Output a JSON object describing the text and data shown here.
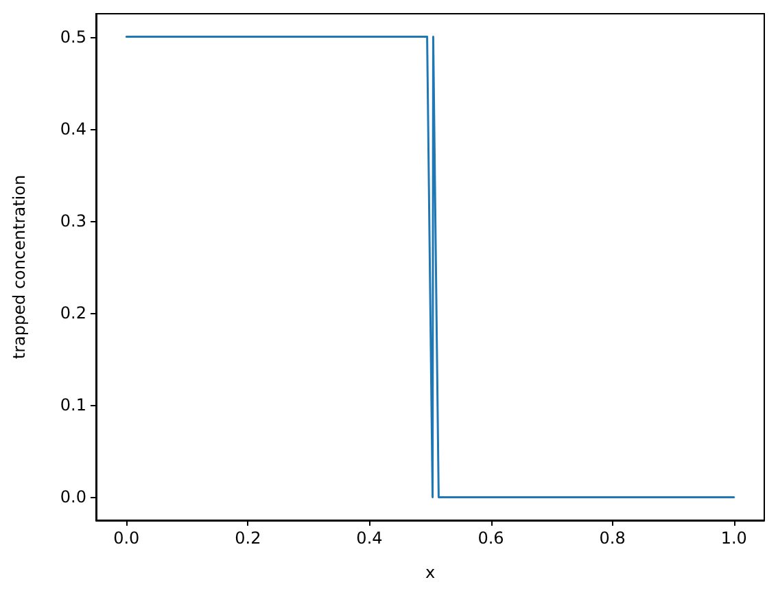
{
  "chart_data": {
    "type": "line",
    "xlabel": "x",
    "ylabel": "trapped concentration",
    "series": [
      {
        "color": "#1f77b4",
        "x": [
          0,
          0.495,
          0.504,
          0.505,
          0.514,
          1.0
        ],
        "values": [
          0.5,
          0.5,
          0,
          0.5,
          0,
          0
        ]
      }
    ],
    "xlim": [
      -0.05,
      1.05
    ],
    "xticks": [
      {
        "value": 0,
        "label": "0.0"
      },
      0.2,
      0.4,
      0.6,
      0.8,
      {
        "value": 1,
        "label": "1.0"
      }
    ],
    "ylim": [
      -0.025,
      0.525
    ],
    "yticks": [
      {
        "value": 0,
        "label": "0.0"
      },
      0.1,
      0.2,
      0.3,
      0.4,
      0.5
    ],
    "grid": false,
    "marker": "none",
    "line_style": "solid"
  }
}
